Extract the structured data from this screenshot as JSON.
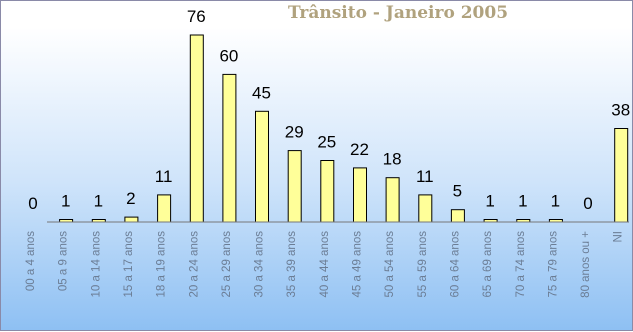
{
  "chart_data": {
    "type": "bar",
    "title": "Trânsito -  Janeiro 2005",
    "categories": [
      "00 a 4 anos",
      "05 a 9 anos",
      "10 a 14 anos",
      "15 a 17 anos",
      "18 a 19 anos",
      "20 a 24 anos",
      "25 a 29 anos",
      "30 a 34 anos",
      "35 a 39 anos",
      "40 a 44 anos",
      "45 a 49 anos",
      "50 a 54 anos",
      "55 a 59 anos",
      "60 a 64 anos",
      "65 a 69 anos",
      "70 a 74 anos",
      "75 a 79 anos",
      "80 anos ou +",
      "NI"
    ],
    "values": [
      0,
      1,
      1,
      2,
      11,
      76,
      60,
      45,
      29,
      25,
      22,
      18,
      11,
      5,
      1,
      1,
      1,
      0,
      38
    ],
    "ylim": [
      0,
      76
    ],
    "grid": false,
    "legend": "none",
    "colors": {
      "bar": "#ffff99",
      "bar_outline": "#000000",
      "title": "#b0a27e",
      "tick_label": "#6b7d95"
    }
  }
}
